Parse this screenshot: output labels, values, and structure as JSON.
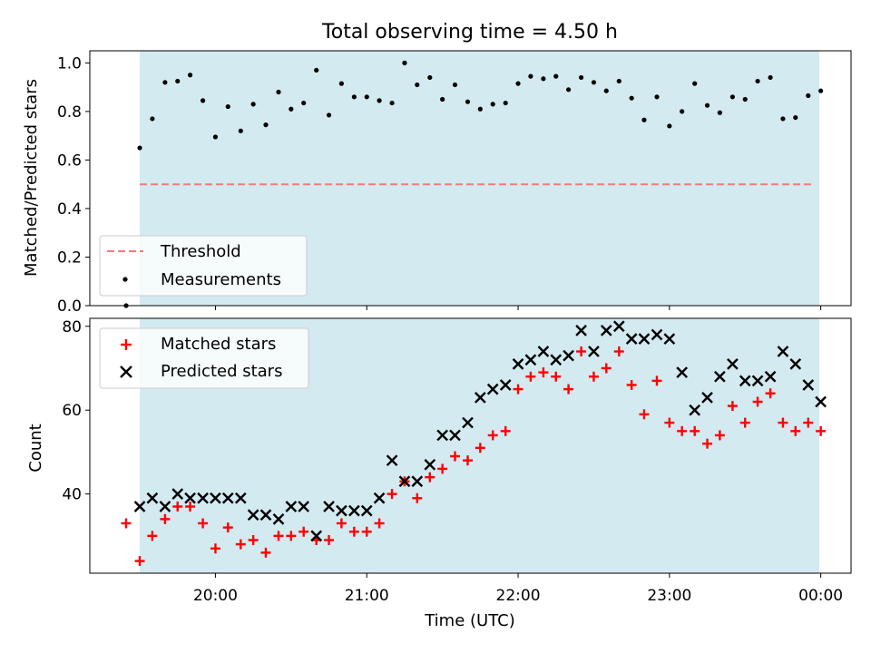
{
  "chart_data": [
    {
      "type": "scatter",
      "title": "Total observing time = 4.50 h",
      "ylabel": "Matched/Predicted stars",
      "ylim": [
        0,
        1.05
      ],
      "yticks": [
        0.0,
        0.2,
        0.4,
        0.6,
        0.8,
        1.0
      ],
      "ytick_labels": [
        "0.0",
        "0.2",
        "0.4",
        "0.6",
        "0.8",
        "1.0"
      ],
      "shaded_interval_hours": [
        19.5,
        23.99
      ],
      "shade_color": "#d3eaf0",
      "threshold": {
        "name": "Threshold",
        "value": 0.5,
        "x_start_hours": 19.5,
        "x_end_hours": 23.95,
        "color": "#f47a7a"
      },
      "series": [
        {
          "name": "Measurements",
          "color": "#000000",
          "x_hours": [
            19.41,
            19.5,
            19.583,
            19.667,
            19.75,
            19.833,
            19.917,
            20.0,
            20.083,
            20.167,
            20.25,
            20.333,
            20.417,
            20.5,
            20.583,
            20.667,
            20.75,
            20.833,
            20.917,
            21.0,
            21.083,
            21.167,
            21.25,
            21.333,
            21.417,
            21.5,
            21.583,
            21.667,
            21.75,
            21.833,
            21.917,
            22.0,
            22.083,
            22.167,
            22.25,
            22.333,
            22.417,
            22.5,
            22.583,
            22.667,
            22.75,
            22.833,
            22.917,
            23.0,
            23.083,
            23.167,
            23.25,
            23.333,
            23.417,
            23.5,
            23.583,
            23.667,
            23.75,
            23.833,
            23.917,
            24.0
          ],
          "values": [
            0.0,
            0.65,
            0.77,
            0.92,
            0.925,
            0.95,
            0.845,
            0.695,
            0.82,
            0.72,
            0.83,
            0.745,
            0.88,
            0.81,
            0.835,
            0.97,
            0.785,
            0.915,
            0.86,
            0.86,
            0.845,
            0.835,
            1.0,
            0.91,
            0.94,
            0.85,
            0.91,
            0.84,
            0.81,
            0.83,
            0.835,
            0.915,
            0.945,
            0.935,
            0.945,
            0.89,
            0.94,
            0.92,
            0.885,
            0.925,
            0.855,
            0.765,
            0.86,
            0.74,
            0.8,
            0.915,
            0.825,
            0.795,
            0.86,
            0.85,
            0.925,
            0.94,
            0.77,
            0.775,
            0.865,
            0.885
          ]
        }
      ],
      "legend": {
        "location": "lower-left",
        "entries": [
          "Threshold",
          "Measurements"
        ]
      }
    },
    {
      "type": "scatter",
      "xlabel": "Time (UTC)",
      "ylabel": "Count",
      "xlim_hours": [
        19.17,
        24.2
      ],
      "xticks_hours": [
        20,
        21,
        22,
        23,
        24
      ],
      "xtick_labels": [
        "20:00",
        "21:00",
        "22:00",
        "23:00",
        "00:00"
      ],
      "ylim": [
        21.1,
        81.9
      ],
      "yticks": [
        40,
        60,
        80
      ],
      "ytick_labels": [
        "40",
        "60",
        "80"
      ],
      "shaded_interval_hours": [
        19.5,
        23.99
      ],
      "series": [
        {
          "name": "Matched stars",
          "marker": "plus",
          "color": "#ff0000",
          "x_hours": [
            19.41,
            19.5,
            19.583,
            19.667,
            19.75,
            19.833,
            19.917,
            20.0,
            20.083,
            20.167,
            20.25,
            20.333,
            20.417,
            20.5,
            20.583,
            20.667,
            20.75,
            20.833,
            20.917,
            21.0,
            21.083,
            21.167,
            21.25,
            21.333,
            21.417,
            21.5,
            21.583,
            21.667,
            21.75,
            21.833,
            21.917,
            22.0,
            22.083,
            22.167,
            22.25,
            22.333,
            22.417,
            22.5,
            22.583,
            22.667,
            22.75,
            22.833,
            22.917,
            23.0,
            23.083,
            23.167,
            23.25,
            23.333,
            23.417,
            23.5,
            23.583,
            23.667,
            23.75,
            23.833,
            23.917,
            24.0
          ],
          "values": [
            33,
            24,
            30,
            34,
            37,
            37,
            33,
            27,
            32,
            28,
            29,
            26,
            30,
            30,
            31,
            29,
            29,
            33,
            31,
            31,
            33,
            40,
            43,
            39,
            44,
            46,
            49,
            48,
            51,
            54,
            55,
            65,
            68,
            69,
            68,
            65,
            74,
            68,
            70,
            74,
            66,
            59,
            67,
            57,
            55,
            55,
            52,
            54,
            61,
            57,
            62,
            64,
            57,
            55,
            57,
            55
          ]
        },
        {
          "name": "Predicted stars",
          "marker": "x",
          "color": "#000000",
          "x_hours": [
            19.5,
            19.583,
            19.667,
            19.75,
            19.833,
            19.917,
            20.0,
            20.083,
            20.167,
            20.25,
            20.333,
            20.417,
            20.5,
            20.583,
            20.667,
            20.75,
            20.833,
            20.917,
            21.0,
            21.083,
            21.167,
            21.25,
            21.333,
            21.417,
            21.5,
            21.583,
            21.667,
            21.75,
            21.833,
            21.917,
            22.0,
            22.083,
            22.167,
            22.25,
            22.333,
            22.417,
            22.5,
            22.583,
            22.667,
            22.75,
            22.833,
            22.917,
            23.0,
            23.083,
            23.167,
            23.25,
            23.333,
            23.417,
            23.5,
            23.583,
            23.667,
            23.75,
            23.833,
            23.917,
            24.0
          ],
          "values": [
            37,
            39,
            37,
            40,
            39,
            39,
            39,
            39,
            39,
            35,
            35,
            34,
            37,
            37,
            30,
            37,
            36,
            36,
            36,
            39,
            48,
            43,
            43,
            47,
            54,
            54,
            57,
            63,
            65,
            66,
            71,
            72,
            74,
            72,
            73,
            79,
            74,
            79,
            80,
            77,
            77,
            78,
            77,
            69,
            60,
            63,
            68,
            71,
            67,
            67,
            68,
            74,
            71,
            66,
            62
          ]
        }
      ],
      "legend": {
        "location": "upper-left",
        "entries": [
          "Matched stars",
          "Predicted stars"
        ]
      }
    }
  ]
}
